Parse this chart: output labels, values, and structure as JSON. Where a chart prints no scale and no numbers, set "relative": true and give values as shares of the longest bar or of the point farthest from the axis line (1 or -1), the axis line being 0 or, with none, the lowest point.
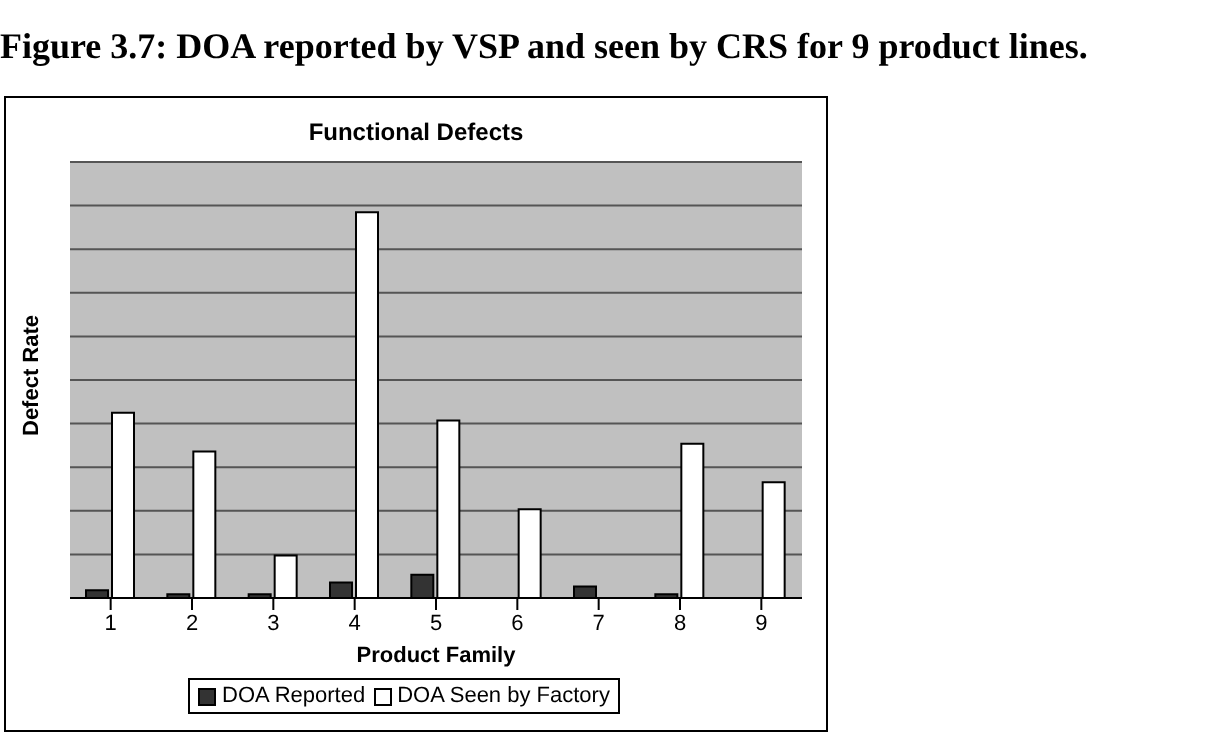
{
  "chart_data": {
    "type": "bar",
    "title": "Functional Defects",
    "annotations": [
      "Figure 3.7:  DOA reported by VSP and seen by CRS for 9 product lines."
    ],
    "xlabel": "Product Family",
    "ylabel": "Defect Rate",
    "relative": true,
    "grid": "y",
    "legend": "bottom",
    "categories": [
      "1",
      "2",
      "3",
      "4",
      "5",
      "6",
      "7",
      "8",
      "9"
    ],
    "series": [
      {
        "name": "DOA Reported",
        "color": "#333333",
        "values": [
          0.02,
          0.01,
          0.01,
          0.04,
          0.06,
          0.0,
          0.03,
          0.01,
          0
        ]
      },
      {
        "name": "DOA Seen by Factory",
        "color": "#ffffff",
        "values": [
          0.48,
          0.38,
          0.11,
          1,
          0.46,
          0.23,
          0,
          0.4,
          0.3
        ]
      }
    ]
  }
}
